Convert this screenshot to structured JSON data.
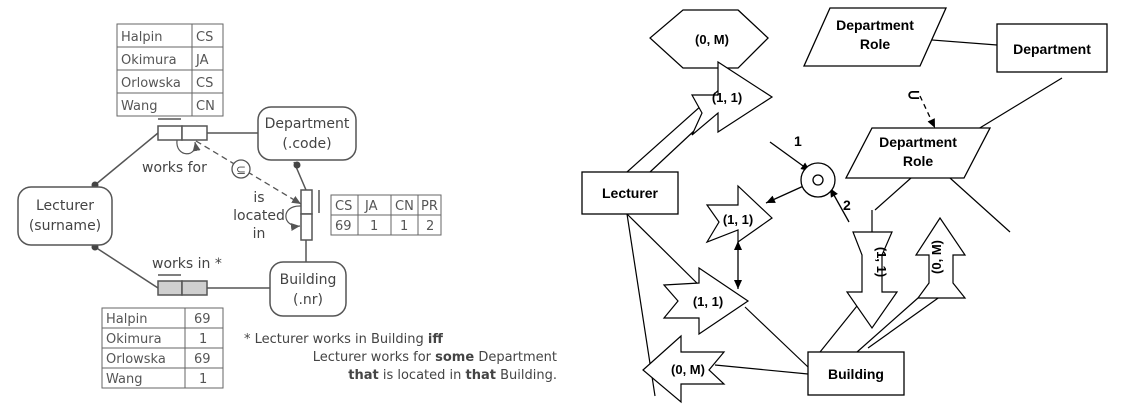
{
  "orm": {
    "works_for_table": [
      [
        "Halpin",
        "CS"
      ],
      [
        "Okimura",
        "JA"
      ],
      [
        "Orlowska",
        "CS"
      ],
      [
        "Wang",
        "CN"
      ]
    ],
    "department_label": [
      "Department",
      "(.code)"
    ],
    "lecturer_label": [
      "Lecturer",
      "(surname)"
    ],
    "building_label": [
      "Building",
      "(.nr)"
    ],
    "works_for_label": "works for",
    "subset_symbol": "⊆",
    "is_located_in_label": [
      "is",
      "located",
      "in"
    ],
    "location_table": [
      [
        "CS",
        "JA",
        "CN",
        "PR"
      ],
      [
        "69",
        "1",
        "1",
        "2"
      ]
    ],
    "works_in_label": "works in *",
    "works_in_table": [
      [
        "Halpin",
        "69"
      ],
      [
        "Okimura",
        "1"
      ],
      [
        "Orlowska",
        "69"
      ],
      [
        "Wang",
        "1"
      ]
    ],
    "footnote_line1": {
      "prefix": "* Lecturer works in Building ",
      "bold": "iff"
    },
    "footnote_line2": {
      "prefix": "Lecturer works for ",
      "bold": "some",
      "suffix": " Department"
    },
    "footnote_line3": {
      "bold1": "that",
      "middle": " is located in ",
      "bold2": "that",
      "suffix": " Building."
    }
  },
  "er": {
    "department_role_top": [
      "Department",
      "Role"
    ],
    "department": "Department",
    "subset_symbol": "⊂",
    "department_role_mid": [
      "Department",
      "Role"
    ],
    "lecturer": "Lecturer",
    "building": "Building",
    "card_0M_top": "(0, M)",
    "card_11_top": "(1, 1)",
    "card_11_mid": "(1, 1)",
    "card_11_low": "(1, 1)",
    "card_0M_bottom": "(0, M)",
    "card_11_vertical": "(1, 1)",
    "card_0M_vertical": "(0, M)",
    "label_1": "1",
    "label_2": "2"
  }
}
